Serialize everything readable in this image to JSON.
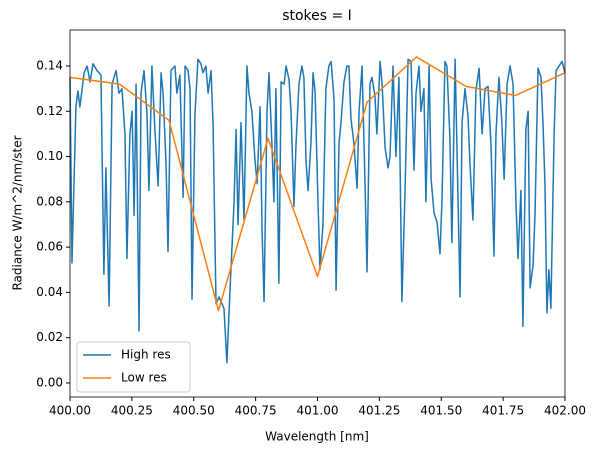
{
  "chart_data": {
    "type": "line",
    "title": "stokes = I",
    "xlabel": "Wavelength [nm]",
    "ylabel": "Radiance W/m^2/nm/ster",
    "xlim": [
      400.0,
      402.0
    ],
    "ylim": [
      -0.0062,
      0.1559
    ],
    "xticks": [
      {
        "value": 400.0,
        "label": "400.00"
      },
      400.25,
      {
        "value": 400.5,
        "label": "400.50"
      },
      400.75,
      {
        "value": 401.0,
        "label": "401.00"
      },
      401.25,
      {
        "value": 401.5,
        "label": "401.50"
      },
      401.75,
      {
        "value": 402.0,
        "label": "402.00"
      }
    ],
    "yticks": [
      {
        "value": 0,
        "label": "0.00"
      },
      0.02,
      0.04,
      0.06,
      0.08,
      {
        "value": 0.1,
        "label": "0.10"
      },
      0.12,
      0.14
    ],
    "legend": "lower left",
    "series": [
      {
        "name": "High res",
        "color": "#1f77b4",
        "x": [
          400.0,
          400.008,
          400.024,
          400.032,
          400.04,
          400.057,
          400.069,
          400.081,
          400.093,
          400.109,
          400.125,
          400.137,
          400.145,
          400.158,
          400.17,
          400.186,
          400.198,
          400.21,
          400.222,
          400.23,
          400.242,
          400.251,
          400.259,
          400.267,
          400.279,
          400.287,
          400.299,
          400.311,
          400.319,
          400.331,
          400.343,
          400.356,
          400.368,
          400.376,
          400.388,
          400.396,
          400.408,
          400.424,
          400.432,
          400.444,
          400.457,
          400.465,
          400.477,
          400.485,
          400.493,
          400.505,
          400.517,
          400.529,
          400.537,
          400.549,
          400.558,
          400.57,
          400.578,
          400.59,
          400.602,
          400.61,
          400.622,
          400.634,
          400.646,
          400.663,
          400.671,
          400.679,
          400.691,
          400.703,
          400.715,
          400.723,
          400.735,
          400.747,
          400.756,
          400.768,
          400.776,
          400.784,
          400.796,
          400.804,
          400.816,
          400.824,
          400.832,
          400.844,
          400.853,
          400.865,
          400.873,
          400.885,
          400.893,
          400.905,
          400.913,
          400.925,
          400.937,
          400.945,
          400.954,
          400.962,
          400.974,
          400.982,
          400.99,
          401.002,
          401.01,
          401.022,
          401.034,
          401.046,
          401.055,
          401.067,
          401.075,
          401.087,
          401.095,
          401.107,
          401.119,
          401.127,
          401.135,
          401.147,
          401.16,
          401.168,
          401.18,
          401.192,
          401.2,
          401.212,
          401.22,
          401.232,
          401.24,
          401.253,
          401.261,
          401.273,
          401.285,
          401.293,
          401.305,
          401.317,
          401.329,
          401.341,
          401.354,
          401.366,
          401.378,
          401.39,
          401.398,
          401.41,
          401.418,
          401.43,
          401.438,
          401.451,
          401.459,
          401.471,
          401.483,
          401.495,
          401.503,
          401.515,
          401.523,
          401.535,
          401.543,
          401.556,
          401.568,
          401.576,
          401.584,
          401.596,
          401.608,
          401.616,
          401.628,
          401.64,
          401.653,
          401.665,
          401.677,
          401.689,
          401.701,
          401.713,
          401.721,
          401.733,
          401.745,
          401.754,
          401.766,
          401.778,
          401.79,
          401.802,
          401.81,
          401.822,
          401.83,
          401.842,
          401.851,
          401.859,
          401.871,
          401.879,
          401.891,
          401.903,
          401.911,
          401.919,
          401.927,
          401.935,
          401.943,
          401.956,
          401.964,
          401.976,
          401.988,
          402.0
        ],
        "values": [
          0.135,
          0.053,
          0.122,
          0.129,
          0.122,
          0.137,
          0.14,
          0.133,
          0.141,
          0.138,
          0.136,
          0.048,
          0.095,
          0.034,
          0.132,
          0.138,
          0.128,
          0.13,
          0.11,
          0.055,
          0.11,
          0.12,
          0.074,
          0.132,
          0.023,
          0.128,
          0.138,
          0.119,
          0.085,
          0.14,
          0.112,
          0.087,
          0.137,
          0.128,
          0.097,
          0.058,
          0.138,
          0.14,
          0.128,
          0.136,
          0.082,
          0.14,
          0.138,
          0.13,
          0.037,
          0.119,
          0.143,
          0.141,
          0.137,
          0.14,
          0.128,
          0.138,
          0.114,
          0.035,
          0.038,
          0.036,
          0.033,
          0.009,
          0.04,
          0.08,
          0.112,
          0.07,
          0.115,
          0.072,
          0.14,
          0.128,
          0.12,
          0.099,
          0.088,
          0.122,
          0.068,
          0.036,
          0.12,
          0.137,
          0.105,
          0.08,
          0.13,
          0.044,
          0.133,
          0.132,
          0.14,
          0.134,
          0.12,
          0.078,
          0.105,
          0.132,
          0.14,
          0.135,
          0.097,
          0.085,
          0.107,
          0.137,
          0.129,
          0.08,
          0.05,
          0.07,
          0.13,
          0.14,
          0.142,
          0.125,
          0.041,
          0.106,
          0.115,
          0.133,
          0.14,
          0.14,
          0.117,
          0.106,
          0.086,
          0.12,
          0.14,
          0.088,
          0.049,
          0.132,
          0.135,
          0.127,
          0.11,
          0.142,
          0.132,
          0.104,
          0.095,
          0.1,
          0.14,
          0.1,
          0.135,
          0.036,
          0.086,
          0.143,
          0.142,
          0.094,
          0.128,
          0.14,
          0.12,
          0.13,
          0.08,
          0.14,
          0.09,
          0.075,
          0.071,
          0.057,
          0.081,
          0.142,
          0.14,
          0.108,
          0.062,
          0.143,
          0.08,
          0.038,
          0.115,
          0.13,
          0.118,
          0.097,
          0.072,
          0.129,
          0.139,
          0.11,
          0.13,
          0.131,
          0.105,
          0.056,
          0.11,
          0.135,
          0.115,
          0.09,
          0.132,
          0.14,
          0.132,
          0.079,
          0.055,
          0.085,
          0.025,
          0.112,
          0.12,
          0.042,
          0.052,
          0.075,
          0.139,
          0.135,
          0.115,
          0.088,
          0.031,
          0.05,
          0.033,
          0.11,
          0.138,
          0.14,
          0.142,
          0.137
        ]
      },
      {
        "name": "Low res",
        "color": "#ff7f0e",
        "x": [
          400.0,
          400.2,
          400.4,
          400.6,
          400.8,
          401.0,
          401.2,
          401.4,
          401.6,
          401.8,
          402.0
        ],
        "values": [
          0.135,
          0.132,
          0.116,
          0.032,
          0.108,
          0.047,
          0.124,
          0.144,
          0.131,
          0.127,
          0.137
        ]
      }
    ]
  }
}
